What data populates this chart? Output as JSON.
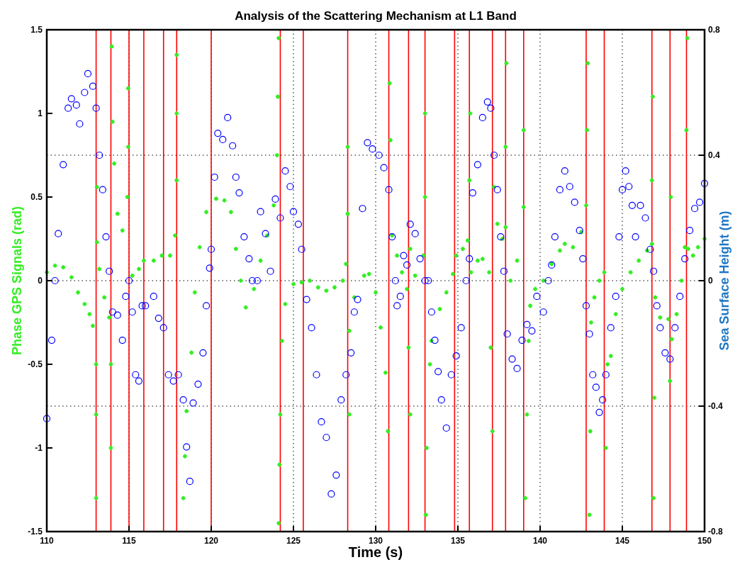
{
  "chart_data": {
    "type": "scatter",
    "title": "Analysis of the Scattering Mechanism at L1 Band",
    "xlabel": "Time (s)",
    "ylabel": "Phase GPS Signals (rad)",
    "y2label": "Sea Surface Height (m)",
    "xlim": [
      110,
      150
    ],
    "xticks": [
      110,
      115,
      120,
      125,
      130,
      135,
      140,
      145,
      150
    ],
    "ylim": [
      -1.5,
      1.5
    ],
    "yticks": [
      1.5,
      1,
      0.5,
      0,
      -0.5,
      -1,
      -1.5
    ],
    "y2lim": [
      -0.8,
      0.8
    ],
    "y2ticks": [
      0.8,
      0.4,
      0,
      -0.4,
      -0.8
    ],
    "grid": true,
    "series": [
      {
        "color": "#33ee22",
        "marker": "cross",
        "x": [
          110,
          110.5,
          111,
          111.5,
          111.9,
          112.3,
          112.6,
          112.8,
          113,
          113,
          113,
          113.05,
          113.05,
          113.2,
          113.5,
          113.8,
          113.9,
          113.9,
          113.95,
          114,
          114.1,
          114.3,
          114.6,
          114.9,
          114.95,
          114.95,
          115.2,
          115.6,
          115.9,
          116.5,
          117,
          117.5,
          117.8,
          117.9,
          117.9,
          117.9,
          118.3,
          118.4,
          118.5,
          118.8,
          119,
          119.3,
          119.7,
          120.3,
          120.8,
          121.2,
          121.5,
          121.8,
          122.1,
          122.6,
          123,
          123.4,
          123.8,
          124,
          124.05,
          124.1,
          124.1,
          124.15,
          124.2,
          124.3,
          124.5,
          125,
          125.5,
          126,
          126.5,
          127,
          127.5,
          128,
          128.2,
          128.3,
          128.3,
          128.4,
          128.4,
          128.7,
          129.3,
          129.6,
          130,
          130.3,
          130.6,
          130.75,
          130.85,
          130.9,
          131,
          131.3,
          131.6,
          131.9,
          132,
          132.1,
          132.1,
          132.4,
          132.9,
          133,
          133,
          133.05,
          133.1,
          133.3,
          133.4,
          133.9,
          134.3,
          134.7,
          134.9,
          135.3,
          135.6,
          135.7,
          135.75,
          135.8,
          136.2,
          136.5,
          136.9,
          137,
          137.1,
          137.2,
          137.4,
          137.7,
          137.9,
          137.9,
          137.95,
          138.2,
          138.6,
          139,
          139,
          139.1,
          139.2,
          139.3,
          139.4,
          139.7,
          140.2,
          140.7,
          141.2,
          141.5,
          142,
          142.5,
          142.8,
          142.85,
          142.9,
          143,
          143.05,
          143.1,
          143.3,
          143.6,
          143.9,
          144,
          144.1,
          144.3,
          144.6,
          145,
          145.5,
          146,
          146.5,
          146.8,
          146.8,
          146.85,
          146.9,
          146.95,
          147,
          147.3,
          147.8,
          147.9,
          147.95,
          148,
          148.3,
          148.6,
          148.8,
          148.9,
          148.95,
          149,
          149.3,
          149.6,
          150
        ],
        "values": [
          0.05,
          0.09,
          0.08,
          0.02,
          -0.07,
          -0.14,
          -0.2,
          -0.27,
          -0.5,
          -0.8,
          -1.3,
          0.23,
          0.56,
          0.07,
          -0.1,
          -0.22,
          -0.5,
          -1,
          1.4,
          0.95,
          0.7,
          0.4,
          0.3,
          0.5,
          0.8,
          1.15,
          0.03,
          0.07,
          0.12,
          0.12,
          0.15,
          0.15,
          0.27,
          0.6,
          1,
          1.35,
          -1.3,
          -1.05,
          -0.78,
          -0.43,
          -0.07,
          0.2,
          0.41,
          0.49,
          0.48,
          0.41,
          0.19,
          0,
          -0.16,
          -0.05,
          0.12,
          0.27,
          0.45,
          0.75,
          1.1,
          1.45,
          -1.45,
          -1.1,
          -0.8,
          -0.36,
          -0.14,
          -0.02,
          -0.01,
          0,
          -0.04,
          -0.06,
          -0.04,
          0,
          0.1,
          0.4,
          0.8,
          -0.8,
          -0.3,
          -0.1,
          0.03,
          0.04,
          -0.07,
          -0.28,
          -0.55,
          -0.9,
          1.18,
          0.84,
          0.27,
          0.15,
          0.05,
          -0.05,
          -0.4,
          -0.8,
          0.19,
          0.03,
          0.15,
          0.5,
          1,
          -1.4,
          -1,
          -0.5,
          -0.36,
          -0.17,
          -0.07,
          0.04,
          0.15,
          0.19,
          0.24,
          0.6,
          1,
          0.05,
          0.12,
          0.13,
          0.05,
          -0.4,
          -0.9,
          0.56,
          0.34,
          0.25,
          0.32,
          0.8,
          1.3,
          0,
          0.12,
          0.44,
          0.9,
          -1.3,
          -0.8,
          -0.36,
          -0.15,
          -0.05,
          0,
          0.1,
          0.18,
          0.22,
          0.2,
          0.29,
          0.45,
          0.9,
          1.3,
          -1.4,
          -0.9,
          -0.25,
          -0.1,
          0,
          0.05,
          -1,
          -0.5,
          -0.45,
          -0.2,
          -0.05,
          0.05,
          0.12,
          0.18,
          0.22,
          0.6,
          1.1,
          -1.3,
          -0.7,
          -0.1,
          -0.22,
          -0.23,
          -0.6,
          0.5,
          -0.35,
          -0.2,
          0,
          0.2,
          0.9,
          1.45,
          0.19,
          0.15,
          0.2,
          0.25
        ]
      },
      {
        "color": "#0000ff",
        "marker": "circle",
        "axis": "y2",
        "x": [
          110,
          110.3,
          110.5,
          110.7,
          111,
          111.3,
          111.5,
          111.8,
          112,
          112.3,
          112.5,
          112.8,
          113,
          113.2,
          113.4,
          113.6,
          113.8,
          114,
          114.3,
          114.6,
          114.8,
          115,
          115.2,
          115.4,
          115.6,
          115.8,
          116,
          116.5,
          116.8,
          117.1,
          117.4,
          117.7,
          118,
          118.3,
          118.5,
          118.7,
          118.9,
          119.2,
          119.5,
          119.7,
          119.9,
          120,
          120.2,
          120.4,
          120.7,
          121,
          121.3,
          121.5,
          121.7,
          122,
          122.3,
          122.5,
          122.8,
          123,
          123.3,
          123.6,
          123.9,
          124.2,
          124.5,
          124.8,
          125,
          125.3,
          125.5,
          125.8,
          126.1,
          126.4,
          126.7,
          127,
          127.3,
          127.6,
          127.9,
          128.2,
          128.5,
          128.7,
          128.9,
          129.2,
          129.5,
          129.8,
          130.2,
          130.5,
          130.8,
          131,
          131.2,
          131.3,
          131.5,
          131.7,
          131.9,
          132.1,
          132.4,
          132.7,
          133,
          133.2,
          133.4,
          133.6,
          133.8,
          134,
          134.3,
          134.6,
          134.9,
          135.2,
          135.5,
          135.7,
          135.9,
          136.2,
          136.5,
          136.8,
          137,
          137.2,
          137.4,
          137.6,
          137.8,
          138,
          138.3,
          138.6,
          138.9,
          139.2,
          139.5,
          139.8,
          140.2,
          140.5,
          140.7,
          140.9,
          141.2,
          141.5,
          141.8,
          142.1,
          142.4,
          142.6,
          142.8,
          143,
          143.2,
          143.4,
          143.6,
          143.8,
          144,
          144.3,
          144.6,
          144.8,
          145,
          145.2,
          145.4,
          145.6,
          145.8,
          146.1,
          146.4,
          146.7,
          146.9,
          147.1,
          147.3,
          147.6,
          147.9,
          148.2,
          148.5,
          148.8,
          149.1,
          149.4,
          149.7,
          150
        ],
        "values": [
          -0.44,
          -0.19,
          0,
          0.15,
          0.37,
          0.55,
          0.58,
          0.56,
          0.5,
          0.6,
          0.66,
          0.62,
          0.55,
          0.4,
          0.29,
          0.14,
          0.03,
          -0.1,
          -0.11,
          -0.19,
          -0.05,
          0,
          -0.1,
          -0.3,
          -0.32,
          -0.08,
          -0.08,
          -0.05,
          -0.12,
          -0.15,
          -0.3,
          -0.32,
          -0.3,
          -0.38,
          -0.53,
          -0.64,
          -0.39,
          -0.33,
          -0.23,
          -0.08,
          0.04,
          0.1,
          0.33,
          0.47,
          0.45,
          0.52,
          0.43,
          0.33,
          0.28,
          0.14,
          0.07,
          0,
          0,
          0.22,
          0.15,
          0.03,
          0.26,
          0.2,
          0.35,
          0.3,
          0.22,
          0.18,
          0.1,
          -0.06,
          -0.15,
          -0.3,
          -0.45,
          -0.5,
          -0.68,
          -0.62,
          -0.38,
          -0.3,
          -0.23,
          -0.1,
          -0.06,
          0.23,
          0.44,
          0.42,
          0.4,
          0.36,
          0.29,
          0.14,
          0,
          -0.08,
          -0.05,
          0.08,
          0.05,
          0.18,
          0.15,
          0.07,
          0,
          0,
          -0.1,
          -0.19,
          -0.29,
          -0.38,
          -0.47,
          -0.3,
          -0.24,
          -0.15,
          0,
          0.07,
          0.28,
          0.37,
          0.52,
          0.57,
          0.55,
          0.4,
          0.29,
          0.14,
          0.03,
          -0.17,
          -0.25,
          -0.28,
          -0.19,
          -0.14,
          -0.16,
          -0.05,
          -0.1,
          0,
          0.05,
          0.14,
          0.29,
          0.35,
          0.3,
          0.25,
          0.16,
          0.07,
          -0.08,
          -0.17,
          -0.3,
          -0.34,
          -0.42,
          -0.38,
          -0.3,
          -0.15,
          -0.05,
          0.14,
          0.29,
          0.35,
          0.3,
          0.24,
          0.14,
          0.24,
          0.2,
          0.1,
          0.03,
          -0.08,
          -0.15,
          -0.23,
          -0.25,
          -0.15,
          -0.05,
          0.07,
          0.16,
          0.23,
          0.25,
          0.31
        ]
      }
    ],
    "ref_lines": [
      {
        "axis": "x",
        "value": 113,
        "color": "#ff0000"
      },
      {
        "axis": "x",
        "value": 113.9,
        "color": "#ff0000"
      },
      {
        "axis": "x",
        "value": 115,
        "color": "#ff0000"
      },
      {
        "axis": "x",
        "value": 115.9,
        "color": "#ff0000"
      },
      {
        "axis": "x",
        "value": 117.1,
        "color": "#ff0000"
      },
      {
        "axis": "x",
        "value": 117.9,
        "color": "#ff0000"
      },
      {
        "axis": "x",
        "value": 120,
        "color": "#ff0000"
      },
      {
        "axis": "x",
        "value": 124.2,
        "color": "#ff0000"
      },
      {
        "axis": "x",
        "value": 125.6,
        "color": "#ff0000"
      },
      {
        "axis": "x",
        "value": 128.3,
        "color": "#ff0000"
      },
      {
        "axis": "x",
        "value": 130.8,
        "color": "#ff0000"
      },
      {
        "axis": "x",
        "value": 132,
        "color": "#ff0000"
      },
      {
        "axis": "x",
        "value": 133,
        "color": "#ff0000"
      },
      {
        "axis": "x",
        "value": 134.8,
        "color": "#ff0000"
      },
      {
        "axis": "x",
        "value": 135.7,
        "color": "#ff0000"
      },
      {
        "axis": "x",
        "value": 137.1,
        "color": "#ff0000"
      },
      {
        "axis": "x",
        "value": 137.9,
        "color": "#ff0000"
      },
      {
        "axis": "x",
        "value": 139,
        "color": "#ff0000"
      },
      {
        "axis": "x",
        "value": 142.8,
        "color": "#ff0000"
      },
      {
        "axis": "x",
        "value": 143.9,
        "color": "#ff0000"
      },
      {
        "axis": "x",
        "value": 146.8,
        "color": "#ff0000"
      },
      {
        "axis": "x",
        "value": 147.9,
        "color": "#ff0000"
      },
      {
        "axis": "x",
        "value": 148.9,
        "color": "#ff0000"
      }
    ]
  }
}
